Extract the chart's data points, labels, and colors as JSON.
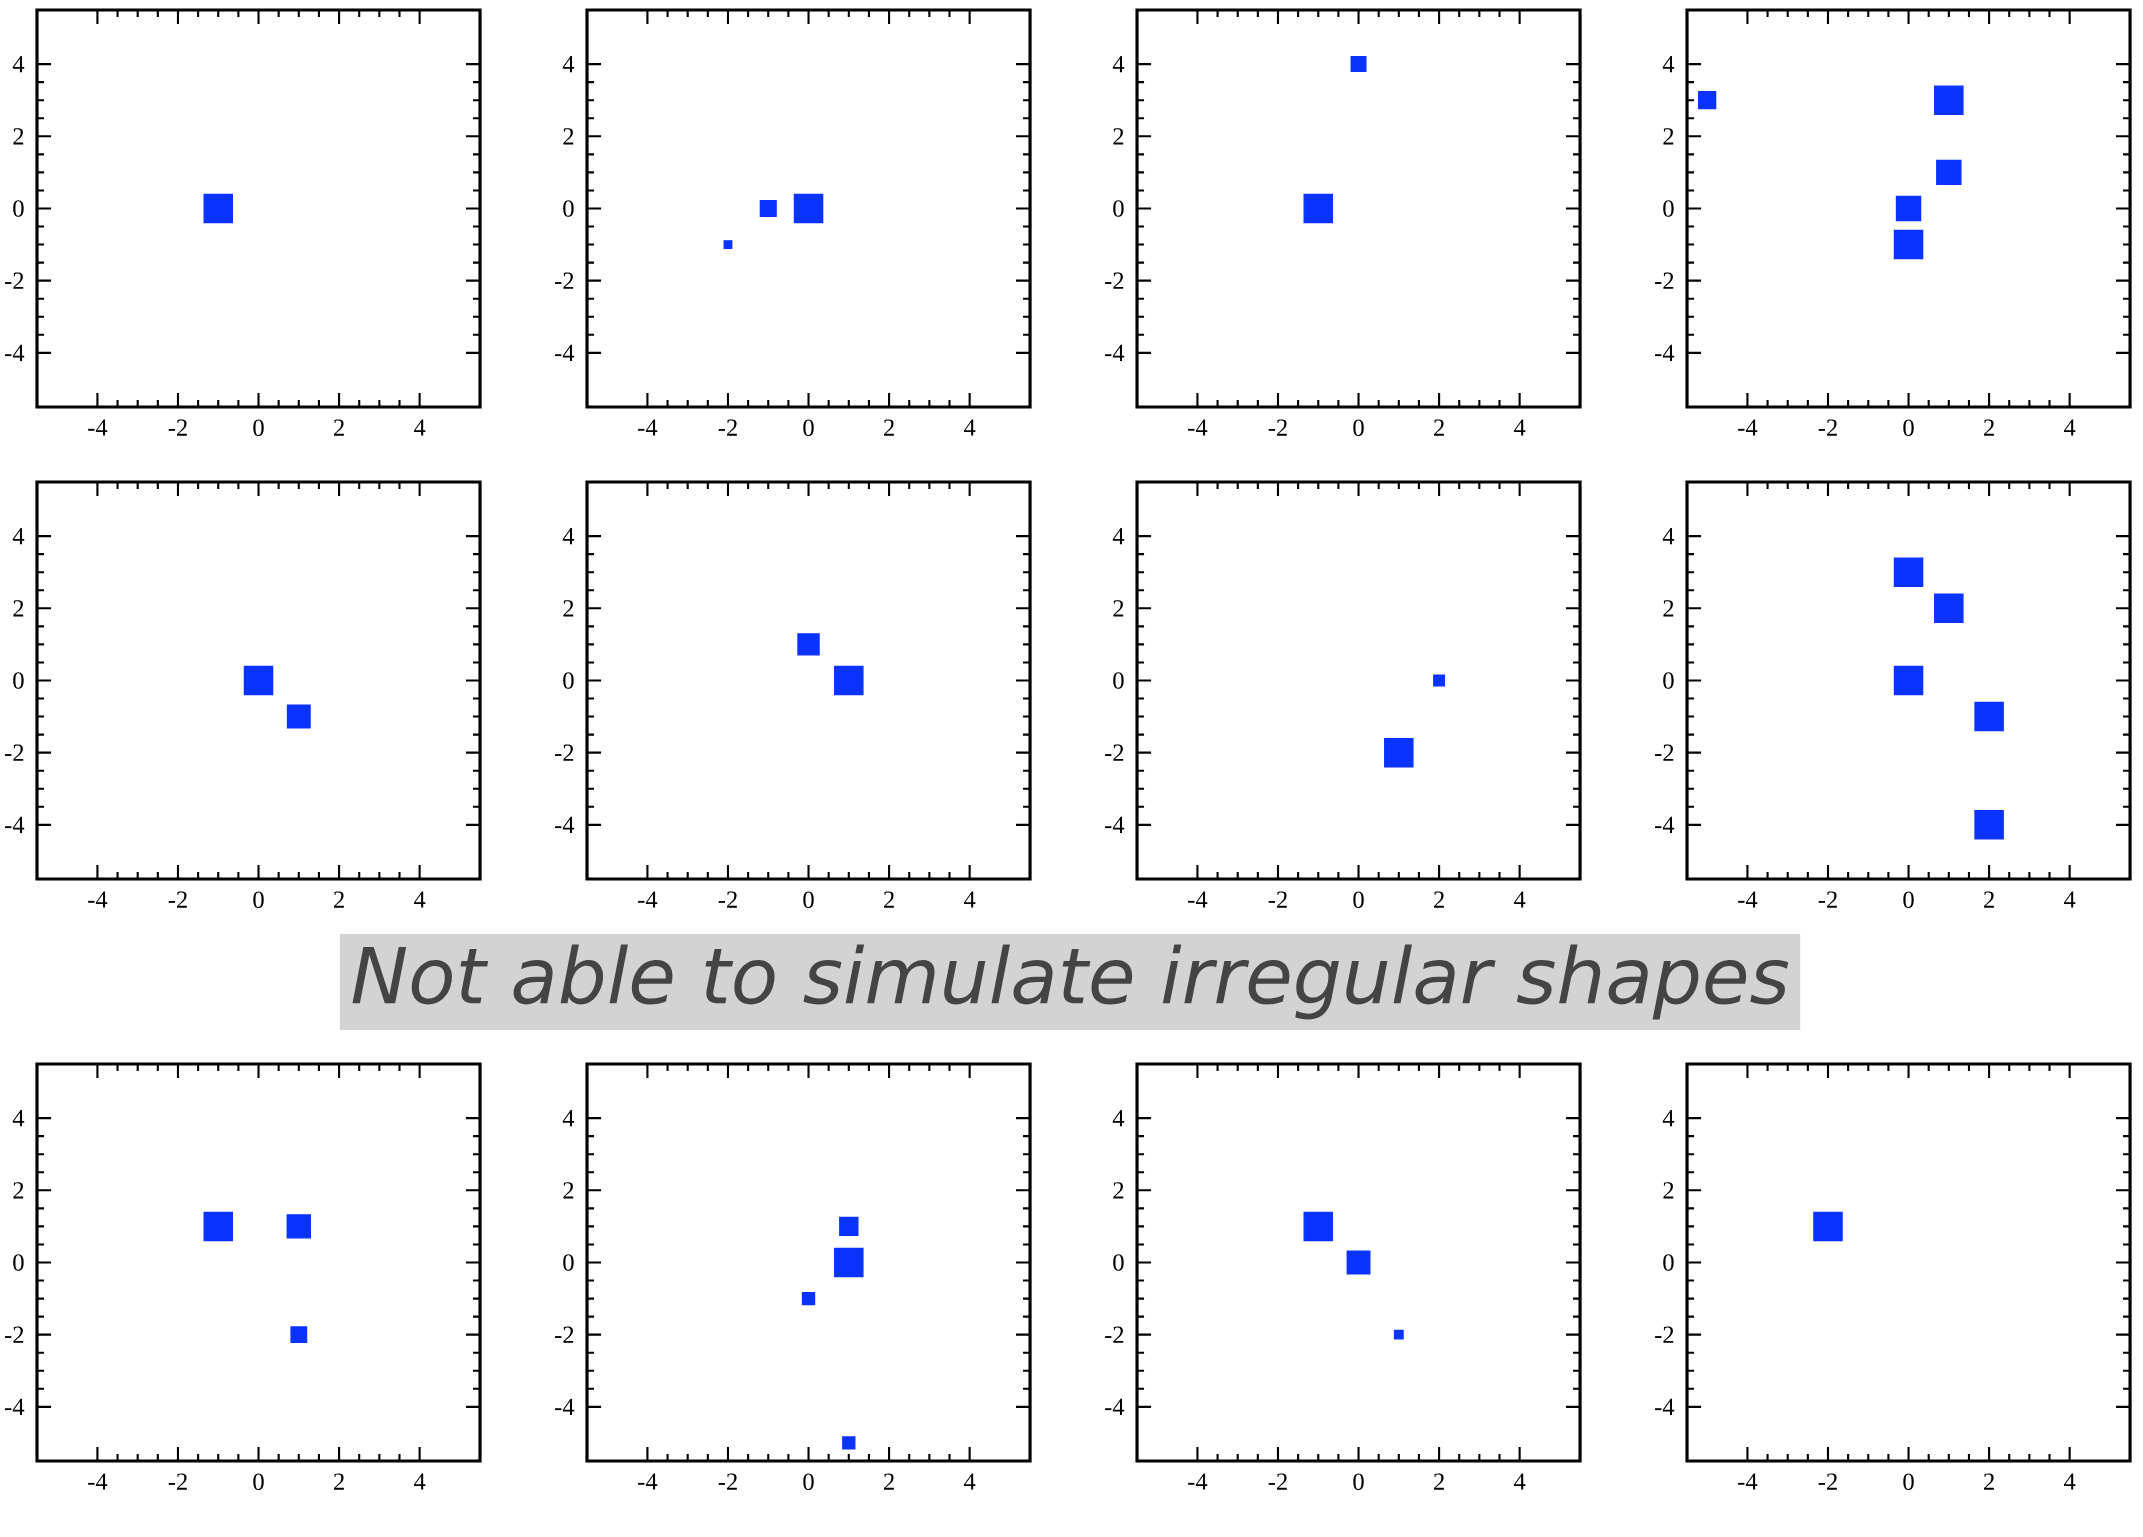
{
  "chart_data": [
    {
      "type": "bubble",
      "x": [
        -1
      ],
      "values": [
        0
      ],
      "sizes": [
        1
      ],
      "color": "#0a33ff",
      "marker": "square",
      "xlim": [
        -5.5,
        5.5
      ],
      "ylim": [
        -5.5,
        5.5
      ],
      "xticks": [
        -4,
        -2,
        0,
        2,
        4
      ],
      "yticks": [
        -4,
        -2,
        0,
        2,
        4
      ]
    },
    {
      "type": "bubble",
      "x": [
        -2,
        -1,
        0
      ],
      "values": [
        -1,
        0,
        0
      ],
      "sizes": [
        0.07,
        0.31,
        1
      ],
      "color": "#0a33ff",
      "marker": "square",
      "xlim": [
        -5.5,
        5.5
      ],
      "ylim": [
        -5.5,
        5.5
      ],
      "xticks": [
        -4,
        -2,
        0,
        2,
        4
      ],
      "yticks": [
        -4,
        -2,
        0,
        2,
        4
      ]
    },
    {
      "type": "bubble",
      "x": [
        0,
        -1
      ],
      "values": [
        4,
        0
      ],
      "sizes": [
        0.27,
        1
      ],
      "color": "#0a33ff",
      "marker": "square",
      "xlim": [
        -5.5,
        5.5
      ],
      "ylim": [
        -5.5,
        5.5
      ],
      "xticks": [
        -4,
        -2,
        0,
        2,
        4
      ],
      "yticks": [
        -4,
        -2,
        0,
        2,
        4
      ]
    },
    {
      "type": "bubble",
      "x": [
        -5,
        1,
        1,
        0,
        0
      ],
      "values": [
        3,
        3,
        1,
        0,
        -1
      ],
      "sizes": [
        0.36,
        1,
        0.73,
        0.73,
        1
      ],
      "color": "#0a33ff",
      "marker": "square",
      "xlim": [
        -5.5,
        5.5
      ],
      "ylim": [
        -5.5,
        5.5
      ],
      "xticks": [
        -4,
        -2,
        0,
        2,
        4
      ],
      "yticks": [
        -4,
        -2,
        0,
        2,
        4
      ]
    },
    {
      "type": "bubble",
      "x": [
        0,
        1
      ],
      "values": [
        0,
        -1
      ],
      "sizes": [
        1,
        0.64
      ],
      "color": "#0a33ff",
      "marker": "square",
      "xlim": [
        -5.5,
        5.5
      ],
      "ylim": [
        -5.5,
        5.5
      ],
      "xticks": [
        -4,
        -2,
        0,
        2,
        4
      ],
      "yticks": [
        -4,
        -2,
        0,
        2,
        4
      ]
    },
    {
      "type": "bubble",
      "x": [
        0,
        1
      ],
      "values": [
        1,
        0
      ],
      "sizes": [
        0.56,
        1
      ],
      "color": "#0a33ff",
      "marker": "square",
      "xlim": [
        -5.5,
        5.5
      ],
      "ylim": [
        -5.5,
        5.5
      ],
      "xticks": [
        -4,
        -2,
        0,
        2,
        4
      ],
      "yticks": [
        -4,
        -2,
        0,
        2,
        4
      ],
      "annotations": [
        "Not able to simulate irregular shapes"
      ]
    },
    {
      "type": "bubble",
      "x": [
        2,
        1
      ],
      "values": [
        0,
        -2
      ],
      "sizes": [
        0.14,
        1
      ],
      "color": "#0a33ff",
      "marker": "square",
      "xlim": [
        -5.5,
        5.5
      ],
      "ylim": [
        -5.5,
        5.5
      ],
      "xticks": [
        -4,
        -2,
        0,
        2,
        4
      ],
      "yticks": [
        -4,
        -2,
        0,
        2,
        4
      ]
    },
    {
      "type": "bubble",
      "x": [
        0,
        1,
        0,
        2,
        2
      ],
      "values": [
        3,
        2,
        0,
        -1,
        -4
      ],
      "sizes": [
        1,
        1,
        1,
        1,
        1
      ],
      "color": "#0a33ff",
      "marker": "square",
      "xlim": [
        -5.5,
        5.5
      ],
      "ylim": [
        -5.5,
        5.5
      ],
      "xticks": [
        -4,
        -2,
        0,
        2,
        4
      ],
      "yticks": [
        -4,
        -2,
        0,
        2,
        4
      ]
    },
    {
      "type": "bubble",
      "x": [
        -1,
        1,
        1
      ],
      "values": [
        1,
        1,
        -2
      ],
      "sizes": [
        1,
        0.67,
        0.3
      ],
      "color": "#0a33ff",
      "marker": "square",
      "xlim": [
        -5.5,
        5.5
      ],
      "ylim": [
        -5.5,
        5.5
      ],
      "xticks": [
        -4,
        -2,
        0,
        2,
        4
      ],
      "yticks": [
        -4,
        -2,
        0,
        2,
        4
      ]
    },
    {
      "type": "bubble",
      "x": [
        1,
        1,
        0,
        1
      ],
      "values": [
        1,
        0,
        -1,
        -5
      ],
      "sizes": [
        0.41,
        1,
        0.18,
        0.18
      ],
      "color": "#0a33ff",
      "marker": "square",
      "xlim": [
        -5.5,
        5.5
      ],
      "ylim": [
        -5.5,
        5.5
      ],
      "xticks": [
        -4,
        -2,
        0,
        2,
        4
      ],
      "yticks": [
        -4,
        -2,
        0,
        2,
        4
      ]
    },
    {
      "type": "bubble",
      "x": [
        -1,
        0,
        1
      ],
      "values": [
        1,
        0,
        -2
      ],
      "sizes": [
        1,
        0.64,
        0.09
      ],
      "color": "#0a33ff",
      "marker": "square",
      "xlim": [
        -5.5,
        5.5
      ],
      "ylim": [
        -5.5,
        5.5
      ],
      "xticks": [
        -4,
        -2,
        0,
        2,
        4
      ],
      "yticks": [
        -4,
        -2,
        0,
        2,
        4
      ]
    },
    {
      "type": "bubble",
      "x": [
        -2
      ],
      "values": [
        1
      ],
      "sizes": [
        1
      ],
      "color": "#0a33ff",
      "marker": "square",
      "xlim": [
        -5.5,
        5.5
      ],
      "ylim": [
        -5.5,
        5.5
      ],
      "xticks": [
        -4,
        -2,
        0,
        2,
        4
      ],
      "yticks": [
        -4,
        -2,
        0,
        2,
        4
      ]
    }
  ]
}
